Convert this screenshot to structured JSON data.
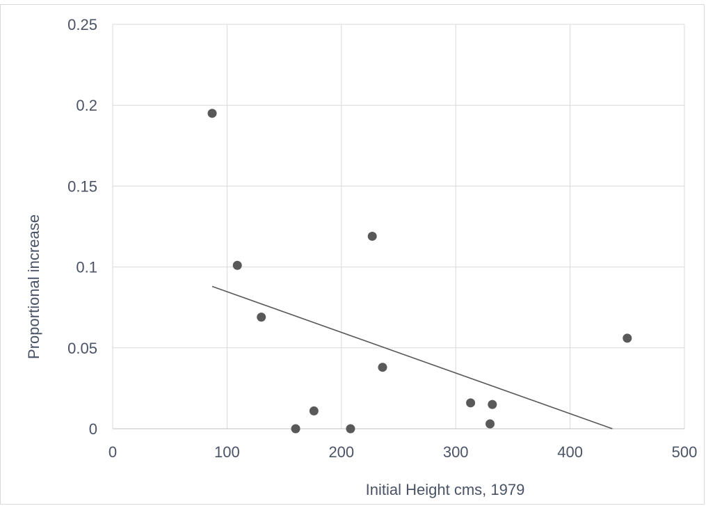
{
  "chart_data": {
    "type": "scatter",
    "title": "",
    "xlabel": "Initial Height cms, 1979",
    "ylabel": "Proportional increase",
    "xlim": [
      0,
      500
    ],
    "ylim": [
      0,
      0.25
    ],
    "x_ticks": [
      "0",
      "100",
      "200",
      "300",
      "400",
      "500"
    ],
    "y_ticks": [
      "0",
      "0.05",
      "0.1",
      "0.15",
      "0.2",
      "0.25"
    ],
    "grid": true,
    "legend": "none",
    "series": [
      {
        "points": [
          {
            "x": 87,
            "y": 0.195
          },
          {
            "x": 109,
            "y": 0.101
          },
          {
            "x": 130,
            "y": 0.069
          },
          {
            "x": 160,
            "y": 0.0
          },
          {
            "x": 176,
            "y": 0.011
          },
          {
            "x": 208,
            "y": 0.0
          },
          {
            "x": 227,
            "y": 0.119
          },
          {
            "x": 236,
            "y": 0.038
          },
          {
            "x": 313,
            "y": 0.016
          },
          {
            "x": 330,
            "y": 0.003
          },
          {
            "x": 332,
            "y": 0.015
          },
          {
            "x": 450,
            "y": 0.056
          }
        ],
        "color": "#595959"
      }
    ],
    "trendline": {
      "type": "linear",
      "x_start": 87,
      "y_start": 0.088,
      "x_end": 437,
      "y_end": 0.0,
      "color": "#595959"
    }
  }
}
